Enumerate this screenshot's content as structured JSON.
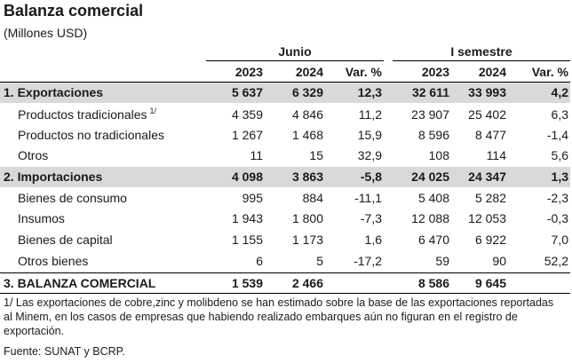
{
  "title": "Balanza comercial",
  "subtitle": "(Millones USD)",
  "groups": {
    "junio": "Junio",
    "semestre": "I semestre"
  },
  "columns": [
    "2023",
    "2024",
    "Var. %",
    "2023",
    "2024",
    "Var. %"
  ],
  "rows": [
    {
      "label": "1. Exportaciones",
      "values": [
        "5 637",
        "6 329",
        "12,3",
        "32 611",
        "33 993",
        "4,2"
      ]
    },
    {
      "label": "Productos tradicionales",
      "footnote_mark": "1/",
      "values": [
        "4 359",
        "4 846",
        "11,2",
        "23 907",
        "25 402",
        "6,3"
      ]
    },
    {
      "label": "Productos no tradicionales",
      "values": [
        "1 267",
        "1 468",
        "15,9",
        "8 596",
        "8 477",
        "-1,4"
      ]
    },
    {
      "label": "Otros",
      "values": [
        "11",
        "15",
        "32,9",
        "108",
        "114",
        "5,6"
      ]
    },
    {
      "label": "2. Importaciones",
      "values": [
        "4 098",
        "3 863",
        "-5,8",
        "24 025",
        "24 347",
        "1,3"
      ]
    },
    {
      "label": "Bienes de consumo",
      "values": [
        "995",
        "884",
        "-11,1",
        "5 408",
        "5 282",
        "-2,3"
      ]
    },
    {
      "label": "Insumos",
      "values": [
        "1 943",
        "1 800",
        "-7,3",
        "12 088",
        "12 053",
        "-0,3"
      ]
    },
    {
      "label": "Bienes de capital",
      "values": [
        "1 155",
        "1 173",
        "1,6",
        "6 470",
        "6 922",
        "7,0"
      ]
    },
    {
      "label": "Otros bienes",
      "values": [
        "6",
        "5",
        "-17,2",
        "59",
        "90",
        "52,2"
      ]
    },
    {
      "label": "3. BALANZA  COMERCIAL",
      "values": [
        "1 539",
        "2 466",
        "",
        "8 586",
        "9 645",
        ""
      ]
    }
  ],
  "footnote": "1/ Las exportaciones de cobre,zinc y molibdeno se han estimado sobre la base de las exportaciones reportadas al Minem, en los casos de empresas que habiendo realizado embarques aún no figuran en el registro de exportación.",
  "source": "Fuente: SUNAT y BCRP.",
  "colors": {
    "band": "#d9d9d9",
    "text": "#1a1a1a",
    "rule": "#000000"
  }
}
